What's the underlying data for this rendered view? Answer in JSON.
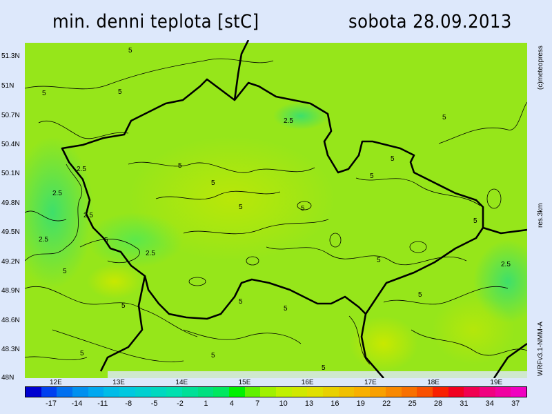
{
  "header": {
    "title": "min. denni teplota [stC]",
    "date": "sobota 28.09.2013"
  },
  "side_labels": {
    "copyright": "(c)meteopress",
    "resolution": "res.3km",
    "model": "WRFv3.1-NMM-A"
  },
  "lat_labels": [
    "51.3N",
    "51N",
    "50.7N",
    "50.4N",
    "50.1N",
    "49.8N",
    "49.5N",
    "49.2N",
    "48.9N",
    "48.6N",
    "48.3N",
    "48N"
  ],
  "lon_labels": [
    "12E",
    "13E",
    "14E",
    "15E",
    "16E",
    "17E",
    "18E",
    "19E"
  ],
  "colorbar": {
    "labels": [
      "-17",
      "-14",
      "-11",
      "-8",
      "-5",
      "-2",
      "1",
      "4",
      "7",
      "10",
      "13",
      "16",
      "19",
      "22",
      "25",
      "28",
      "31",
      "34",
      "37"
    ],
    "colors": [
      "#0000d0",
      "#0040f0",
      "#0070f0",
      "#0090f0",
      "#00a8f0",
      "#00bce8",
      "#00c8e0",
      "#00d0d0",
      "#00d8c0",
      "#00e0b0",
      "#00e098",
      "#00e080",
      "#00e860",
      "#00f000",
      "#60f000",
      "#a0f000",
      "#c0f000",
      "#d0e800",
      "#e0e000",
      "#e8d000",
      "#f0c000",
      "#f8b000",
      "#f8a000",
      "#f88800",
      "#f87000",
      "#f85000",
      "#f82000",
      "#f00020",
      "#f00050",
      "#f00080",
      "#f000a0",
      "#f000c0"
    ],
    "map_fill": "#9ce80a"
  },
  "contour_levels": [
    "2.5",
    "5"
  ]
}
